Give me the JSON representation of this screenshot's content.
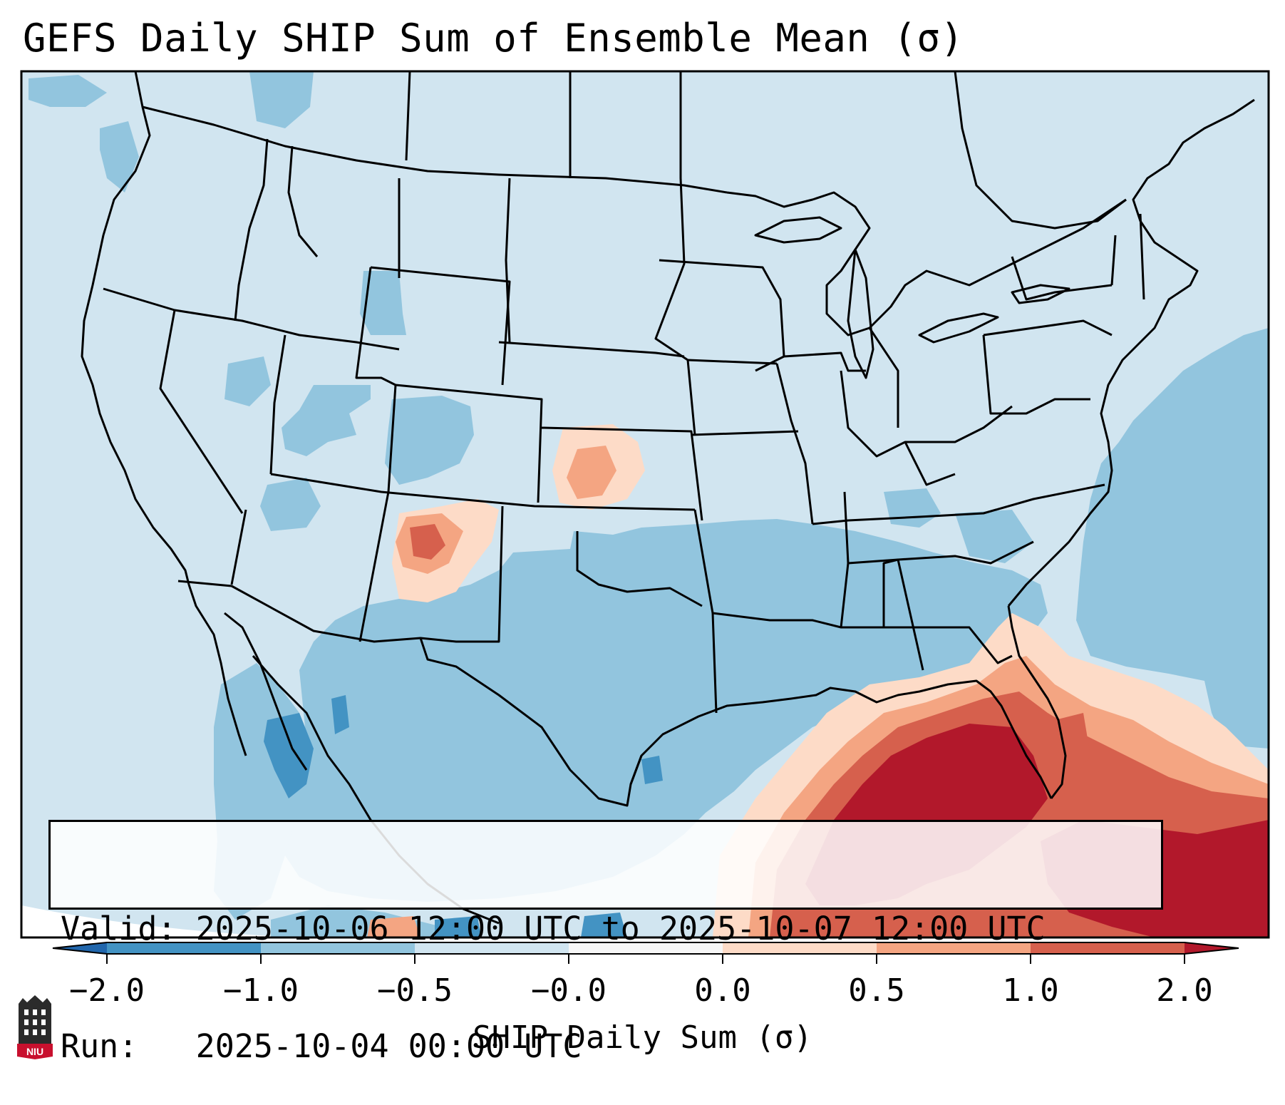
{
  "title": "GEFS Daily SHIP Sum of Ensemble Mean (σ)",
  "map": {
    "region": "Continental United States",
    "colors": {
      "ocean_background": "#d1e5f0",
      "neutral_negative": "#d1e5f0",
      "negative_0_5_to_1": "#92c5de",
      "negative_1_to_2": "#4393c3",
      "positive_0_to_0_5": "#fddbc7",
      "positive_0_5_to_1": "#f4a582",
      "positive_1_to_2": "#d6604d",
      "positive_over_2": "#b2182b",
      "boundary_lines": "#000000"
    }
  },
  "info_box": {
    "valid_line": "Valid: 2025-10-06 12:00 UTC to 2025-10-07 12:00 UTC",
    "run_line": "Run:   2025-10-04 00:00 UTC"
  },
  "colorbar": {
    "label": "SHIP Daily Sum (σ)",
    "ticks": [
      "−2.0",
      "−1.0",
      "−0.5",
      "−0.0",
      "0.0",
      "0.5",
      "1.0",
      "2.0"
    ],
    "segment_colors": [
      "#2166ac",
      "#4393c3",
      "#92c5de",
      "#d1e5f0",
      "#f7f7f7",
      "#fddbc7",
      "#f4a582",
      "#d6604d",
      "#b2182b"
    ]
  },
  "logo": {
    "text": "NIU",
    "colors": {
      "tower": "#2b2b2b",
      "banner": "#c8102e"
    }
  }
}
